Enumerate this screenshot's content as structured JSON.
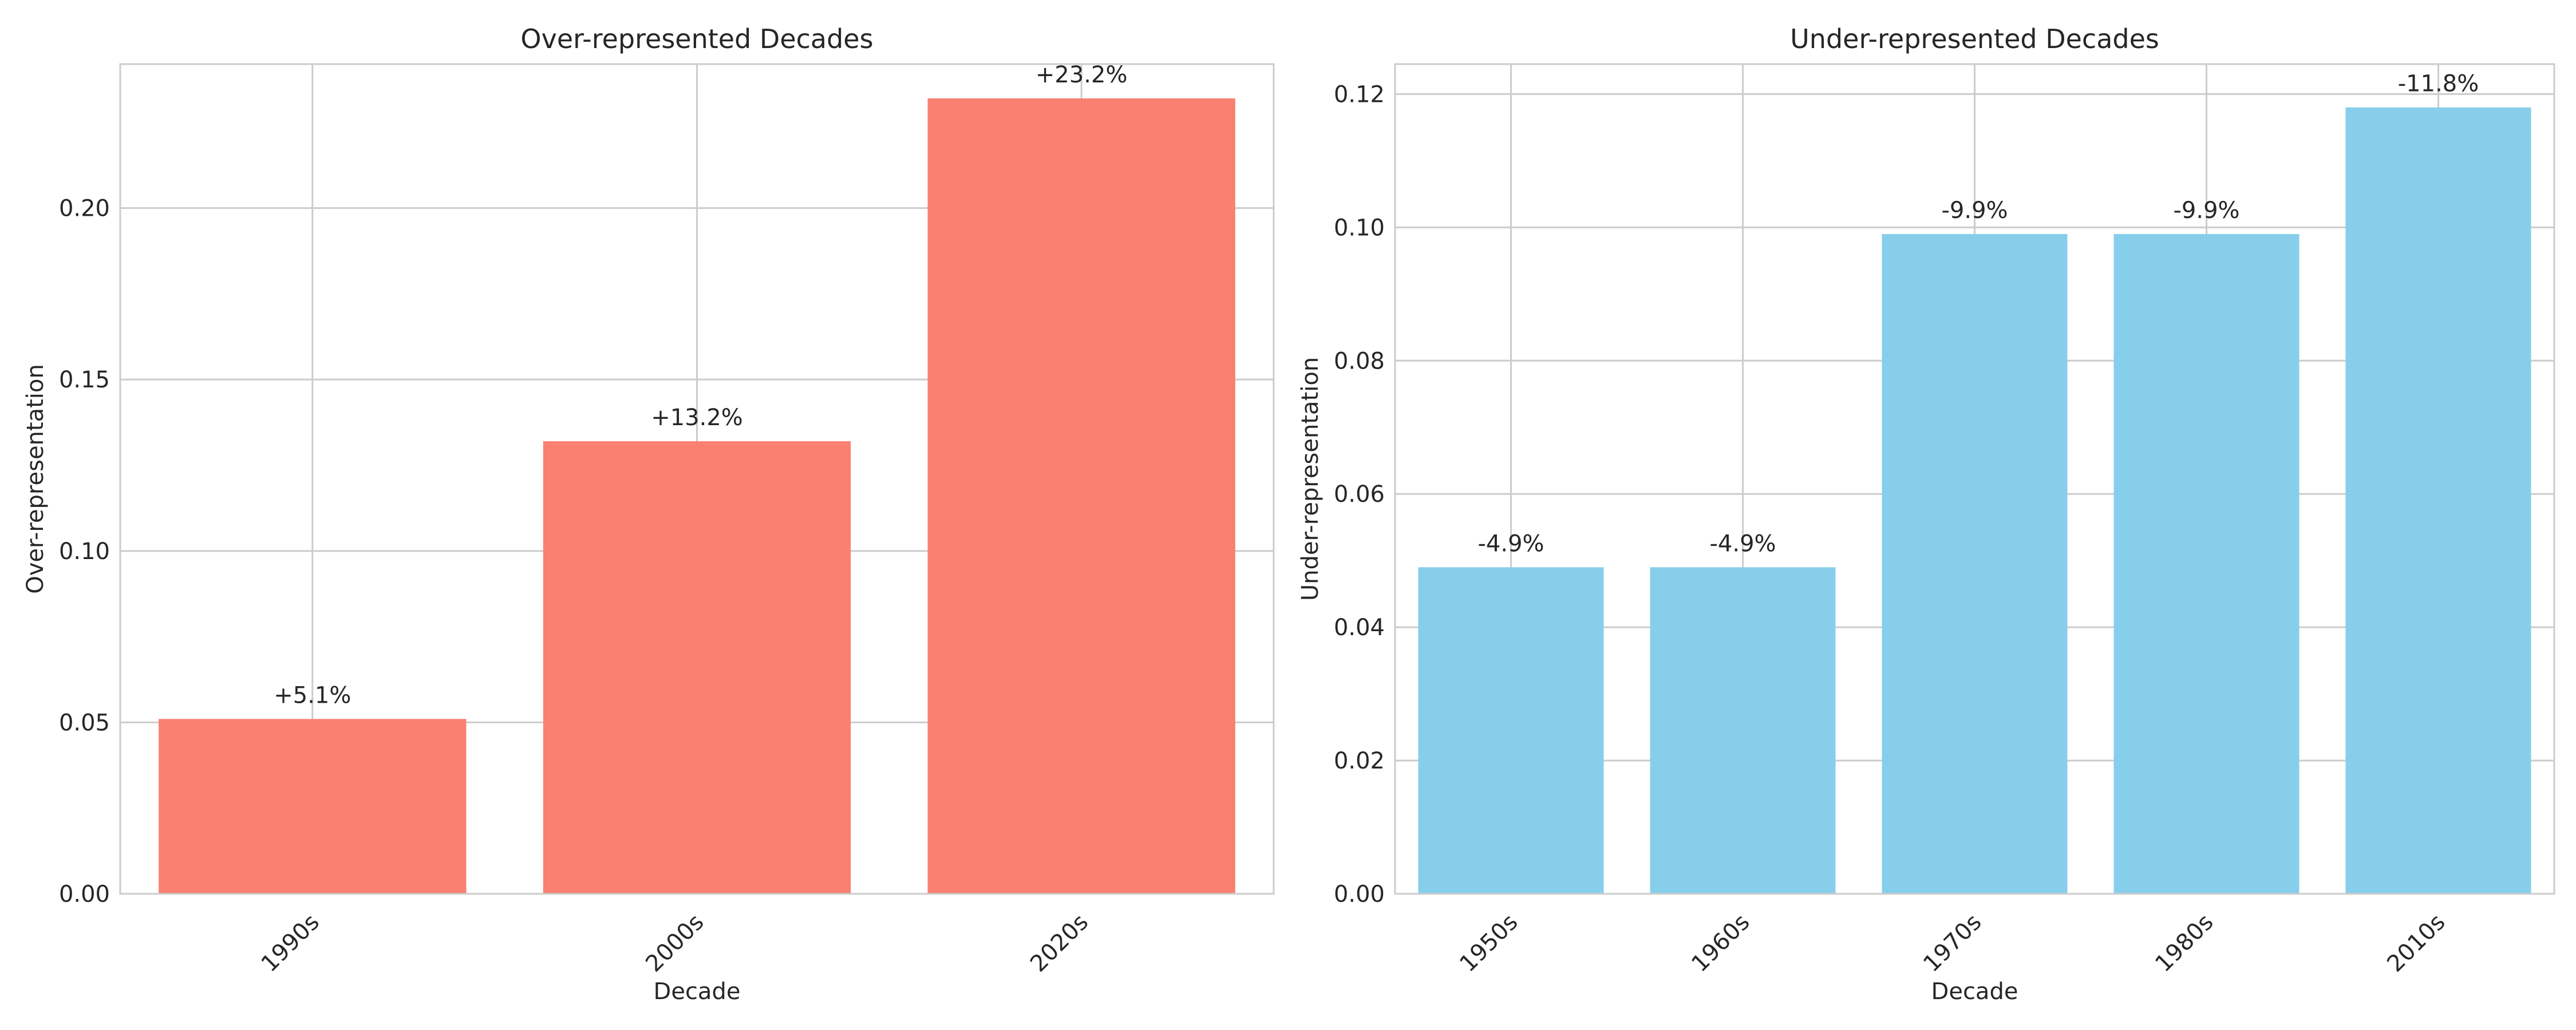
{
  "chart_data": [
    {
      "type": "bar",
      "title": "Over-represented Decades",
      "xlabel": "Decade",
      "ylabel": "Over-representation",
      "categories": [
        "1990s",
        "2000s",
        "2020s"
      ],
      "values": [
        0.051,
        0.132,
        0.232
      ],
      "data_labels": [
        "+5.1%",
        "+13.2%",
        "+23.2%"
      ],
      "ylim": [
        0,
        0.242
      ],
      "yticks": [
        0.0,
        0.05,
        0.1,
        0.15,
        0.2
      ],
      "ytick_labels": [
        "0.00",
        "0.05",
        "0.10",
        "0.15",
        "0.20"
      ],
      "grid": true,
      "color": "#FA8072"
    },
    {
      "type": "bar",
      "title": "Under-represented Decades",
      "xlabel": "Decade",
      "ylabel": "Under-representation",
      "categories": [
        "1950s",
        "1960s",
        "1970s",
        "1980s",
        "2010s"
      ],
      "values": [
        0.049,
        0.049,
        0.099,
        0.099,
        0.118
      ],
      "data_labels": [
        "-4.9%",
        "-4.9%",
        "-9.9%",
        "-9.9%",
        "-11.8%"
      ],
      "ylim": [
        0,
        0.1245
      ],
      "yticks": [
        0.0,
        0.02,
        0.04,
        0.06,
        0.08,
        0.1,
        0.12
      ],
      "ytick_labels": [
        "0.00",
        "0.02",
        "0.04",
        "0.06",
        "0.08",
        "0.10",
        "0.12"
      ],
      "grid": true,
      "color": "#87CEEB"
    }
  ]
}
